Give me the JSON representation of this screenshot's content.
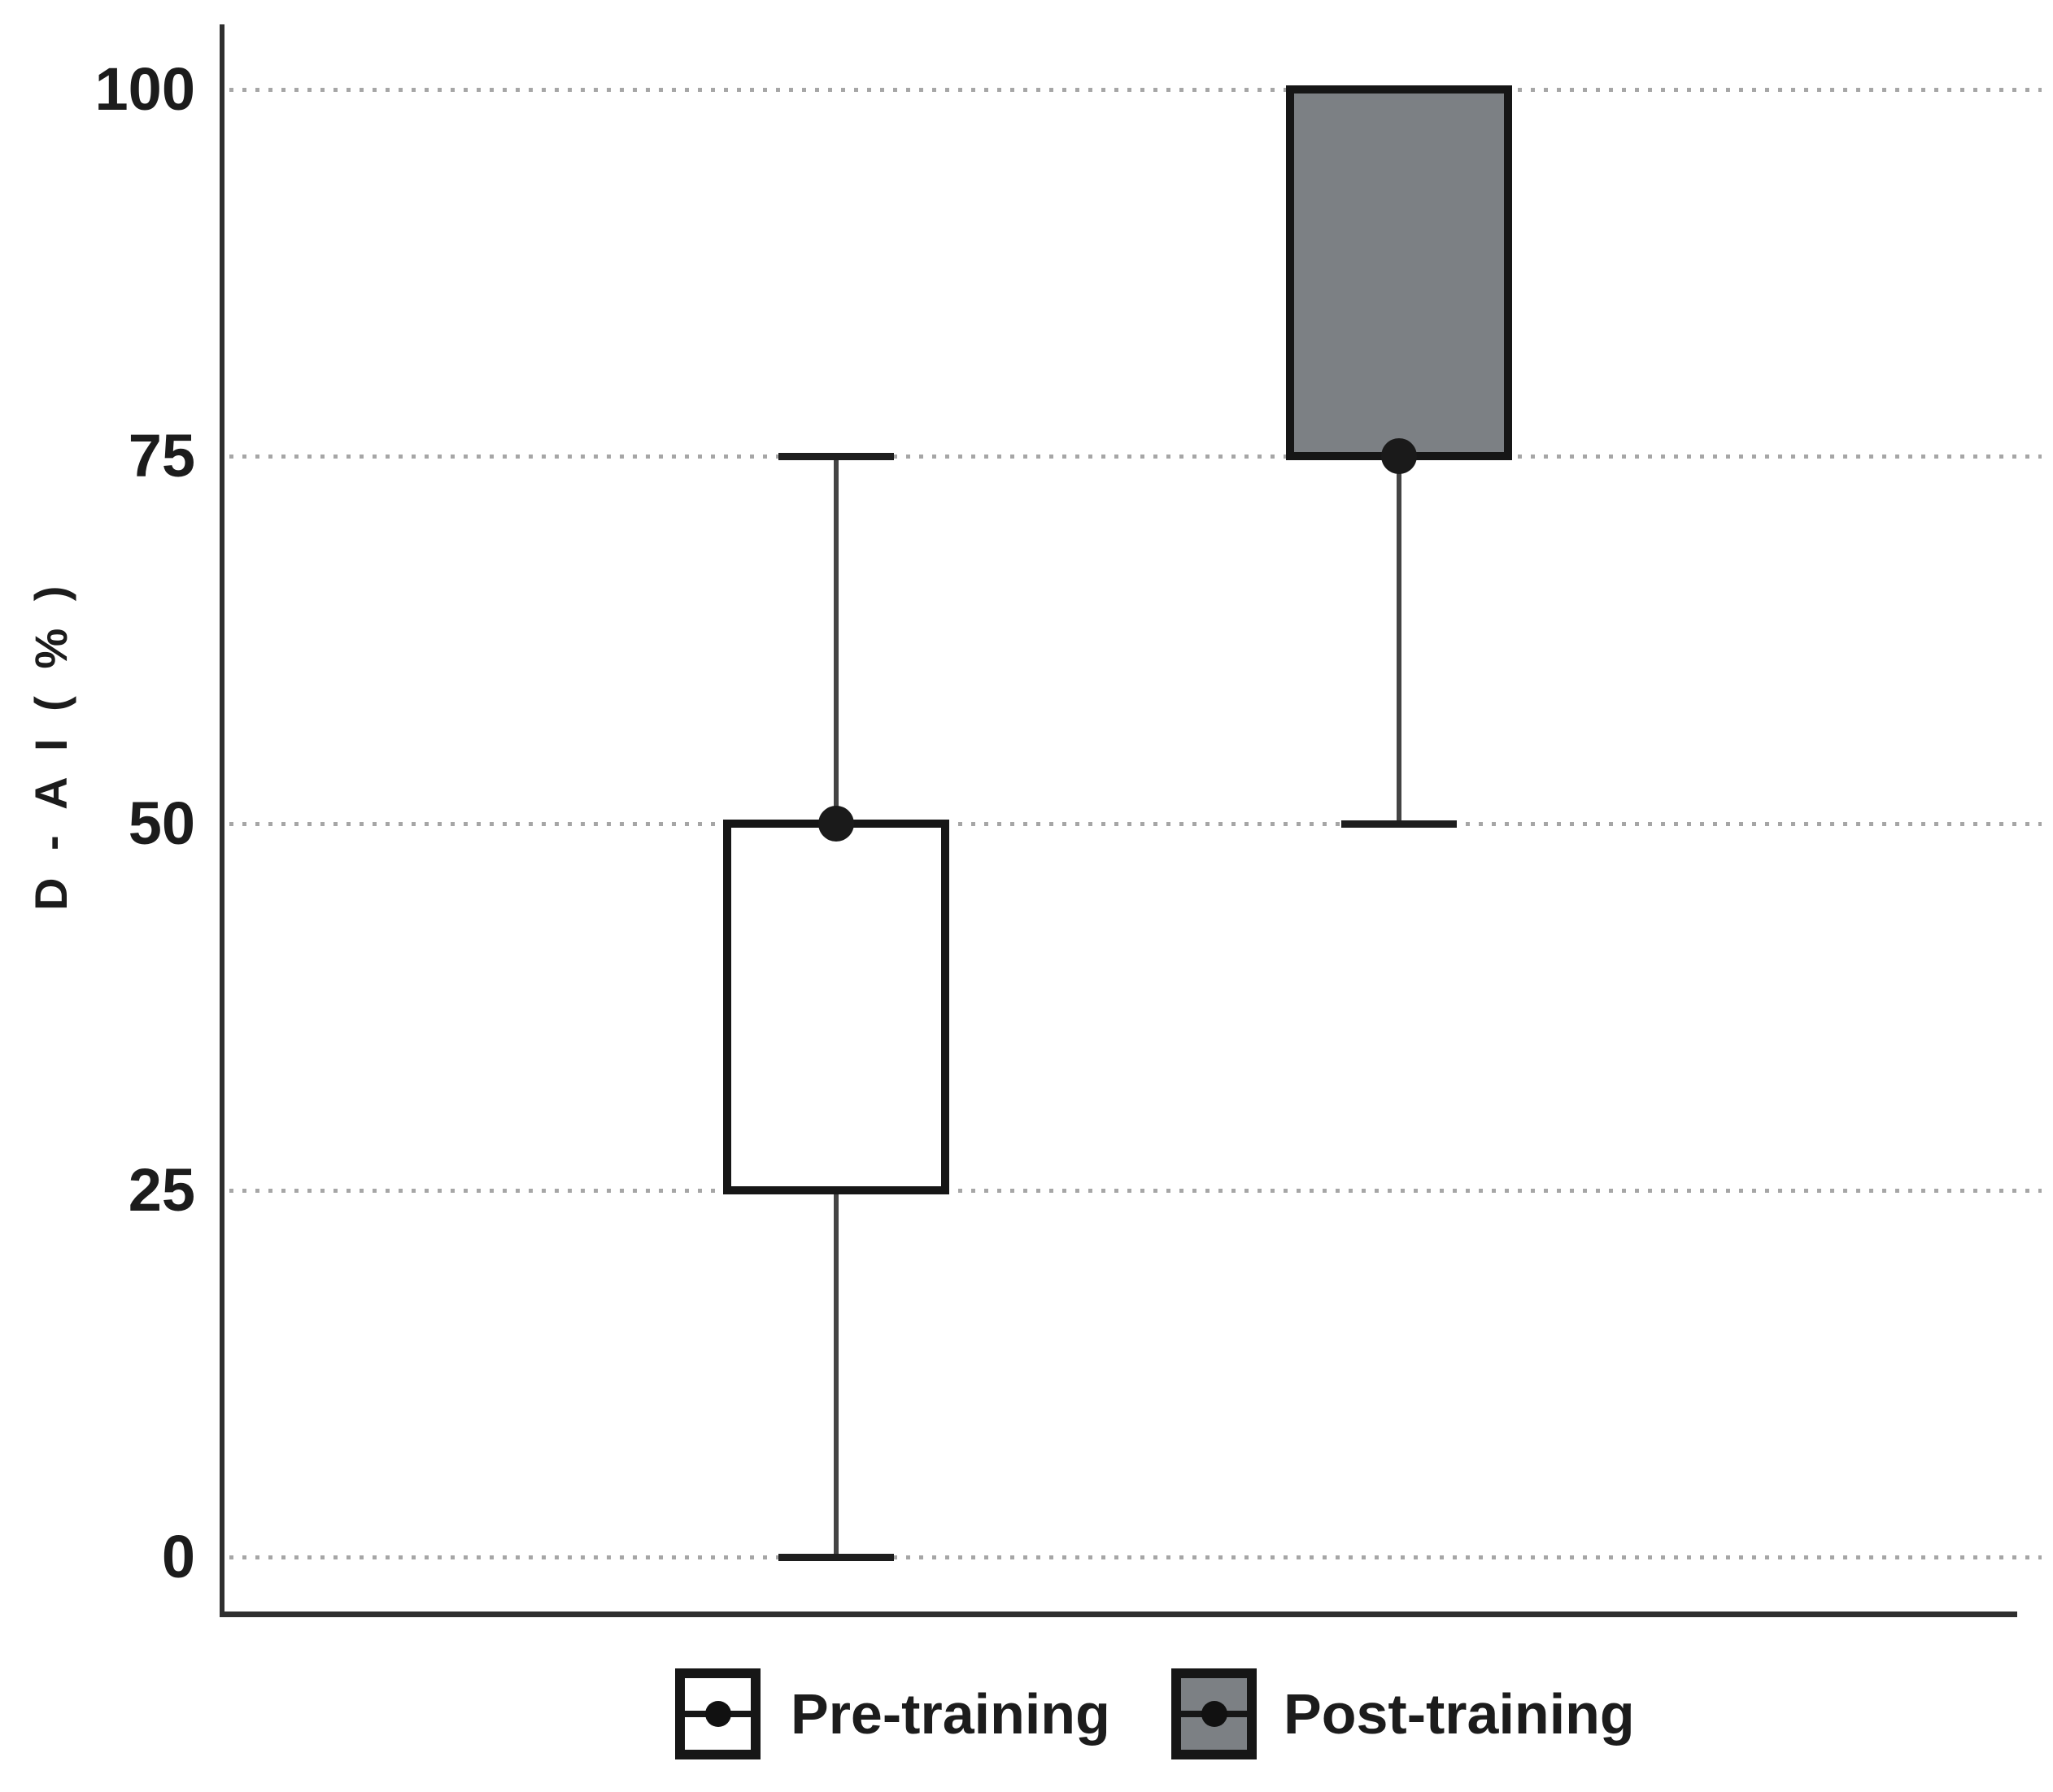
{
  "figure": {
    "background": "#ffffff"
  },
  "chart_data": {
    "type": "boxplot",
    "title": "",
    "ylabel": "D - A I ( % )",
    "xlabel": "",
    "ylim": [
      0,
      100
    ],
    "yticks": [
      100,
      75,
      50,
      25,
      0
    ],
    "grid": "horizontal-dotted",
    "legend_position": "bottom",
    "series": [
      {
        "name": "Pre-training",
        "median": 50,
        "q1": 25,
        "q3": 50,
        "whisker_low": 0,
        "whisker_high": 75,
        "fill": "#ffffff"
      },
      {
        "name": "Post-training",
        "median": 75,
        "q1": 75,
        "q3": 100,
        "whisker_low": 50,
        "whisker_high": 100,
        "fill": "#7c8084"
      }
    ],
    "colors": {
      "box_border": "#161616",
      "whisker": "#444444",
      "cap": "#1e1e1e",
      "grid": "#a6a6a6",
      "axis": "#2f2f2f",
      "text": "#1c1c1c",
      "median_dot": "#1a1a1a"
    }
  }
}
